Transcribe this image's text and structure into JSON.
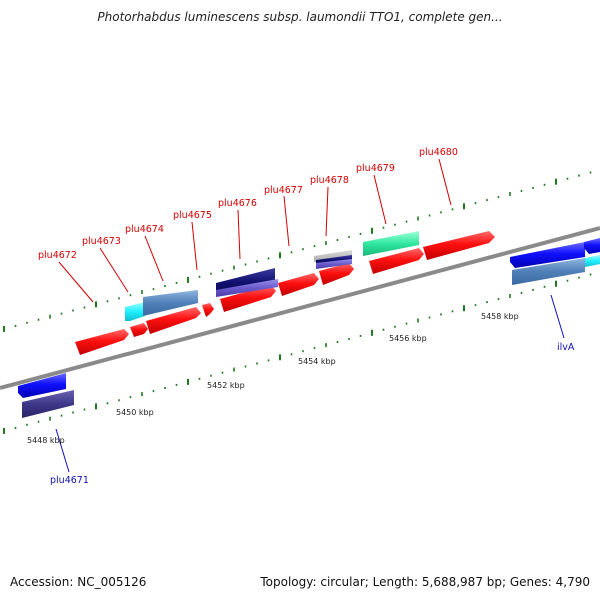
{
  "header": {
    "title": "Photorhabdus luminescens subsp. laumondii TTO1, complete gen..."
  },
  "footer": {
    "accession": "Accession: NC_005126",
    "summary": "Topology: circular; Length: 5,688,987 bp; Genes: 4,790"
  },
  "map": {
    "axis_color": "#888888",
    "tick_color": "#1f7a1f",
    "kbp_labels": [
      "5448 kbp",
      "5450 kbp",
      "5452 kbp",
      "5454 kbp",
      "5456 kbp",
      "5458 kbp"
    ],
    "forward_gene_labels": [
      "plu4672",
      "plu4673",
      "plu4674",
      "plu4675",
      "plu4676",
      "plu4677",
      "plu4678",
      "plu4679",
      "plu4680"
    ],
    "reverse_gene_labels": [
      "plu4671",
      "ilvA"
    ],
    "colors": {
      "forward_gene": "#ff1a1a",
      "reverse_gene": "#1a1aff",
      "feature_cyan": "#33ffff",
      "feature_steel": "#5b8fc8",
      "feature_navy": "#1a1a80",
      "feature_purple": "#6a5acd",
      "feature_green": "#33e6a0"
    }
  }
}
